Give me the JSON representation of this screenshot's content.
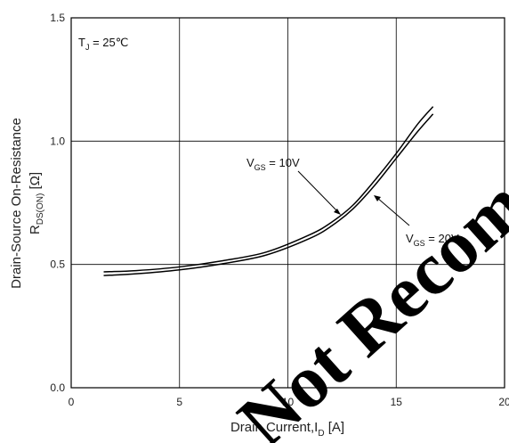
{
  "chart_data": {
    "type": "line",
    "title": "",
    "xlabel": {
      "main": "Drain Current,I",
      "sub": "D",
      "unit": " [A]"
    },
    "ylabel": {
      "line1": "Drain-Source On-Resistance",
      "line2_main": "R",
      "line2_sub": "DS(ON)",
      "line2_unit": " [Ω]"
    },
    "xlim": [
      0,
      20
    ],
    "ylim": [
      0.0,
      1.5
    ],
    "xticks": [
      "0",
      "5",
      "10",
      "15",
      "20"
    ],
    "yticks": [
      "0.0",
      "0.5",
      "1.0",
      "1.5"
    ],
    "grid": true,
    "series": [
      {
        "name": "VGS = 10V",
        "x": [
          1.5,
          3,
          5,
          7,
          9,
          11,
          12,
          13,
          14,
          15,
          16,
          16.7
        ],
        "y": [
          0.47,
          0.475,
          0.49,
          0.515,
          0.55,
          0.62,
          0.67,
          0.74,
          0.84,
          0.95,
          1.07,
          1.14
        ]
      },
      {
        "name": "VGS = 20V",
        "x": [
          1.5,
          3,
          5,
          7,
          9,
          11,
          12,
          13,
          14,
          15,
          16,
          16.7
        ],
        "y": [
          0.455,
          0.462,
          0.478,
          0.503,
          0.538,
          0.605,
          0.655,
          0.725,
          0.82,
          0.93,
          1.04,
          1.11
        ]
      }
    ],
    "annotations": {
      "temperature": {
        "main": "T",
        "sub": "J",
        "rest": " = 25℃"
      },
      "vgs10": {
        "main": "V",
        "sub": "GS",
        "rest": " = 10V"
      },
      "vgs20": {
        "main": "V",
        "sub": "GS",
        "rest": " = 20V"
      }
    }
  },
  "watermark": "Not Recommended"
}
